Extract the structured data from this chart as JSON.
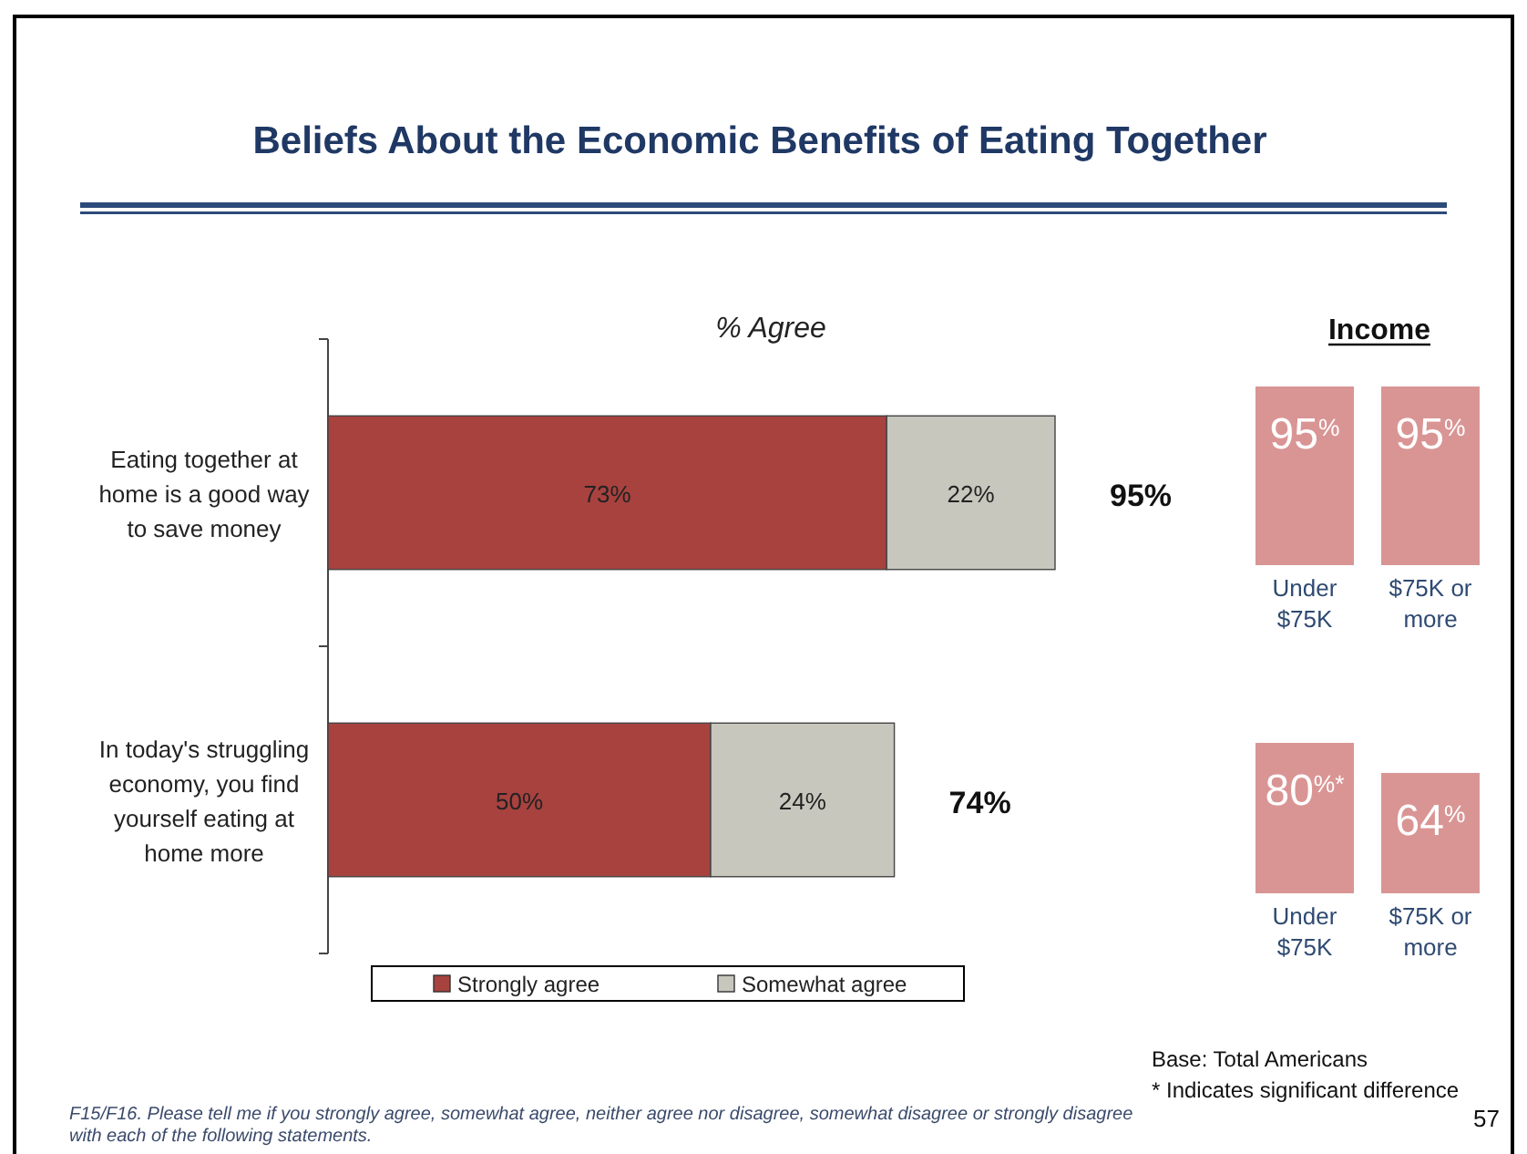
{
  "chart_data": [
    {
      "type": "bar",
      "orientation": "horizontal",
      "stacked": true,
      "title": "Beliefs About the Economic Benefits of Eating Together",
      "subtitle": "% Agree",
      "categories": [
        "Eating together at home is a good way to save money",
        "In today's struggling economy, you find yourself eating at home more"
      ],
      "series": [
        {
          "name": "Strongly agree",
          "color": "#a8423f",
          "values": [
            73,
            50
          ],
          "value_labels": [
            "73%",
            "50%"
          ]
        },
        {
          "name": "Somewhat agree",
          "color": "#c8c7be",
          "values": [
            22,
            24
          ],
          "value_labels": [
            "22%",
            "24%"
          ]
        }
      ],
      "totals": [
        "95%",
        "74%"
      ],
      "tick_labels": "y",
      "legend": "bottom",
      "annotations": [
        "F15/F16.  Please tell me if you strongly agree, somewhat agree, neither agree nor disagree, somewhat disagree or strongly disagree with each of the following statements.",
        "Base: Total Americans",
        "* Indicates significant difference",
        "57"
      ]
    },
    {
      "type": "other",
      "title": "Income",
      "categories": [
        "Under $75K",
        "$75K or more"
      ],
      "series": [
        {
          "color": "#d99594",
          "values": [
            95,
            95
          ],
          "value_labels": [
            "95$^{%}$",
            "95$^{%}$"
          ]
        },
        {
          "color": "#d99594",
          "values": [
            80,
            64
          ],
          "value_labels": [
            "80$^{%*}$",
            "64$^{%}$"
          ]
        }
      ]
    }
  ]
}
